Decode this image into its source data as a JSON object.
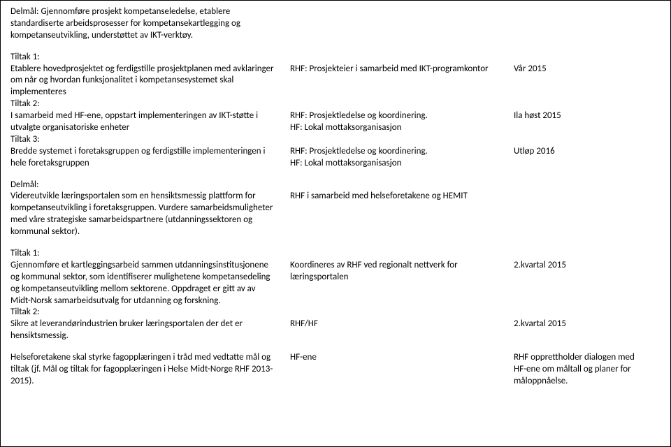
{
  "header_delmal": "Delmål: Gjennomføre prosjekt kompetanseledelse, etablere standardiserte arbeidsprosesser for kompetansekartlegging og kompetanseutvikling, understøttet av IKT-verktøy.",
  "tiltak1_label": "Tiltak 1:",
  "tiltak1_text": "Etablere hovedprosjektet og ferdigstille prosjektplanen med avklaringer om når og hvordan funksjonalitet i kompetansesystemet skal implementeres",
  "tiltak1_rhf": "RHF: Prosjekteier i samarbeid med IKT-programkontor",
  "tiltak1_date": "Vår 2015",
  "tiltak2_label": "Tiltak 2:",
  "tiltak2_text": "I samarbeid med HF-ene, oppstart implementeringen av IKT-støtte i utvalgte organisatoriske enheter",
  "tiltak2_rhf": "RHF: Prosjektledelse og koordinering.\nHF: Lokal mottaksorganisasjon",
  "tiltak2_date": "Ila høst 2015",
  "tiltak3_label": "Tiltak 3:",
  "tiltak3_text": "Bredde systemet i foretaksgruppen og ferdigstille implementeringen i hele foretaksgruppen",
  "tiltak3_rhf": "RHF: Prosjektledelse og koordinering.\nHF: Lokal mottaksorganisasjon",
  "tiltak3_date": "Utløp 2016",
  "delmal2_label": "Delmål:",
  "delmal2_text": "Videreutvikle læringsportalen som en hensiktsmessig plattform for kompetanseutvikling i foretaksgruppen. Vurdere samarbeidsmuligheter med våre strategiske samarbeidspartnere (utdanningssektoren og kommunal sektor).",
  "delmal2_rhf": "RHF i samarbeid med helseforetakene og HEMIT",
  "b_tiltak1_label": "Tiltak 1:",
  "b_tiltak1_text": "Gjennomføre et kartleggingsarbeid sammen utdanningsinstitusjonene og kommunal sektor, som identifiserer mulighetene kompetansedeling og kompetanseutvikling mellom sektorene. Oppdraget er gitt av av Midt-Norsk samarbeidsutvalg for utdanning og forskning.",
  "b_tiltak1_rhf": "Koordineres av RHF ved regionalt nettverk for læringsportalen",
  "b_tiltak1_date": "2.kvartal 2015",
  "b_tiltak2_label": "Tiltak 2:",
  "b_tiltak2_text": "Sikre at leverandørindustrien bruker læringsportalen der det er hensiktsmessig.",
  "b_tiltak2_rhf": "RHF/HF",
  "b_tiltak2_date": "2.kvartal 2015",
  "footer_text": "Helseforetakene skal styrke fagopplæringen i tråd med vedtatte mål og tiltak (jf. Mål og tiltak for fagopplæringen i Helse Midt-Norge RHF 2013-2015).",
  "footer_rhf": "HF-ene",
  "footer_date": "RHF opprettholder dialogen med HF-ene om måltall og planer for måloppnåelse."
}
